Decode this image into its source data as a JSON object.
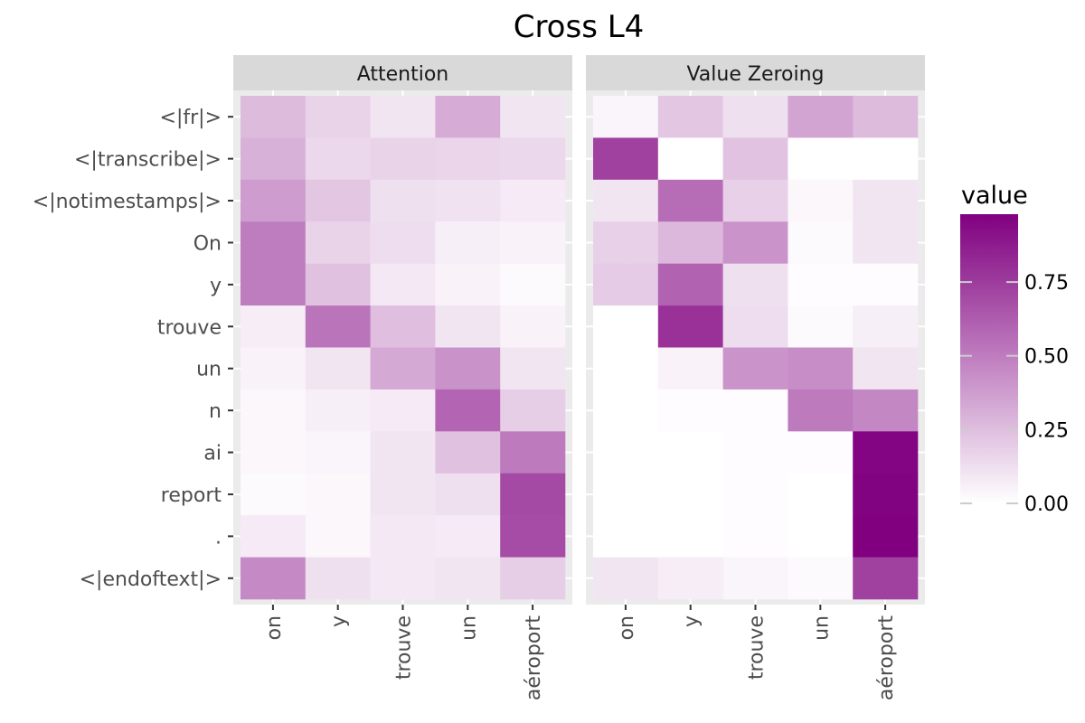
{
  "chart_data": {
    "type": "heatmap",
    "title": "Cross L4",
    "xlabel": "",
    "ylabel": "",
    "x_categories": [
      "on",
      "y",
      "trouve",
      "un",
      "aéroport"
    ],
    "y_categories": [
      "<|fr|>",
      "<|transcribe|>",
      "<|notimestamps|>",
      "On",
      "y",
      "trouve",
      "un",
      "n",
      "ai",
      "report",
      ".",
      "<|endoftext|>"
    ],
    "color_scale": {
      "name": "value",
      "low_color": "#ffffff",
      "high_color": "#800080",
      "min": 0,
      "max": 0.98,
      "breaks": [
        0.0,
        0.25,
        0.5,
        0.75
      ],
      "break_labels": [
        "0.00",
        "0.25",
        "0.50",
        "0.75"
      ]
    },
    "legend_position": "right",
    "panels": [
      {
        "name": "Attention",
        "values": [
          [
            0.26,
            0.17,
            0.1,
            0.32,
            0.1
          ],
          [
            0.3,
            0.15,
            0.17,
            0.16,
            0.15
          ],
          [
            0.38,
            0.22,
            0.12,
            0.11,
            0.08
          ],
          [
            0.5,
            0.17,
            0.13,
            0.06,
            0.05
          ],
          [
            0.5,
            0.24,
            0.09,
            0.05,
            0.02
          ],
          [
            0.07,
            0.53,
            0.25,
            0.1,
            0.05
          ],
          [
            0.05,
            0.1,
            0.33,
            0.42,
            0.1
          ],
          [
            0.03,
            0.06,
            0.08,
            0.59,
            0.19
          ],
          [
            0.03,
            0.04,
            0.1,
            0.24,
            0.51
          ],
          [
            0.02,
            0.03,
            0.1,
            0.12,
            0.7
          ],
          [
            0.08,
            0.03,
            0.09,
            0.08,
            0.69
          ],
          [
            0.45,
            0.12,
            0.09,
            0.1,
            0.19
          ]
        ]
      },
      {
        "name": "Value Zeroing",
        "values": [
          [
            0.04,
            0.22,
            0.12,
            0.35,
            0.26
          ],
          [
            0.73,
            0.0,
            0.23,
            0.0,
            0.0
          ],
          [
            0.1,
            0.56,
            0.18,
            0.03,
            0.1
          ],
          [
            0.18,
            0.27,
            0.41,
            0.02,
            0.1
          ],
          [
            0.2,
            0.6,
            0.12,
            0.01,
            0.01
          ],
          [
            0.0,
            0.79,
            0.13,
            0.02,
            0.06
          ],
          [
            0.0,
            0.05,
            0.41,
            0.44,
            0.1
          ],
          [
            0.0,
            0.01,
            0.01,
            0.51,
            0.46
          ],
          [
            0.0,
            0.0,
            0.01,
            0.01,
            0.96
          ],
          [
            0.0,
            0.0,
            0.01,
            0.0,
            0.97
          ],
          [
            0.0,
            0.0,
            0.01,
            0.0,
            0.98
          ],
          [
            0.1,
            0.07,
            0.04,
            0.02,
            0.73
          ]
        ]
      }
    ]
  }
}
